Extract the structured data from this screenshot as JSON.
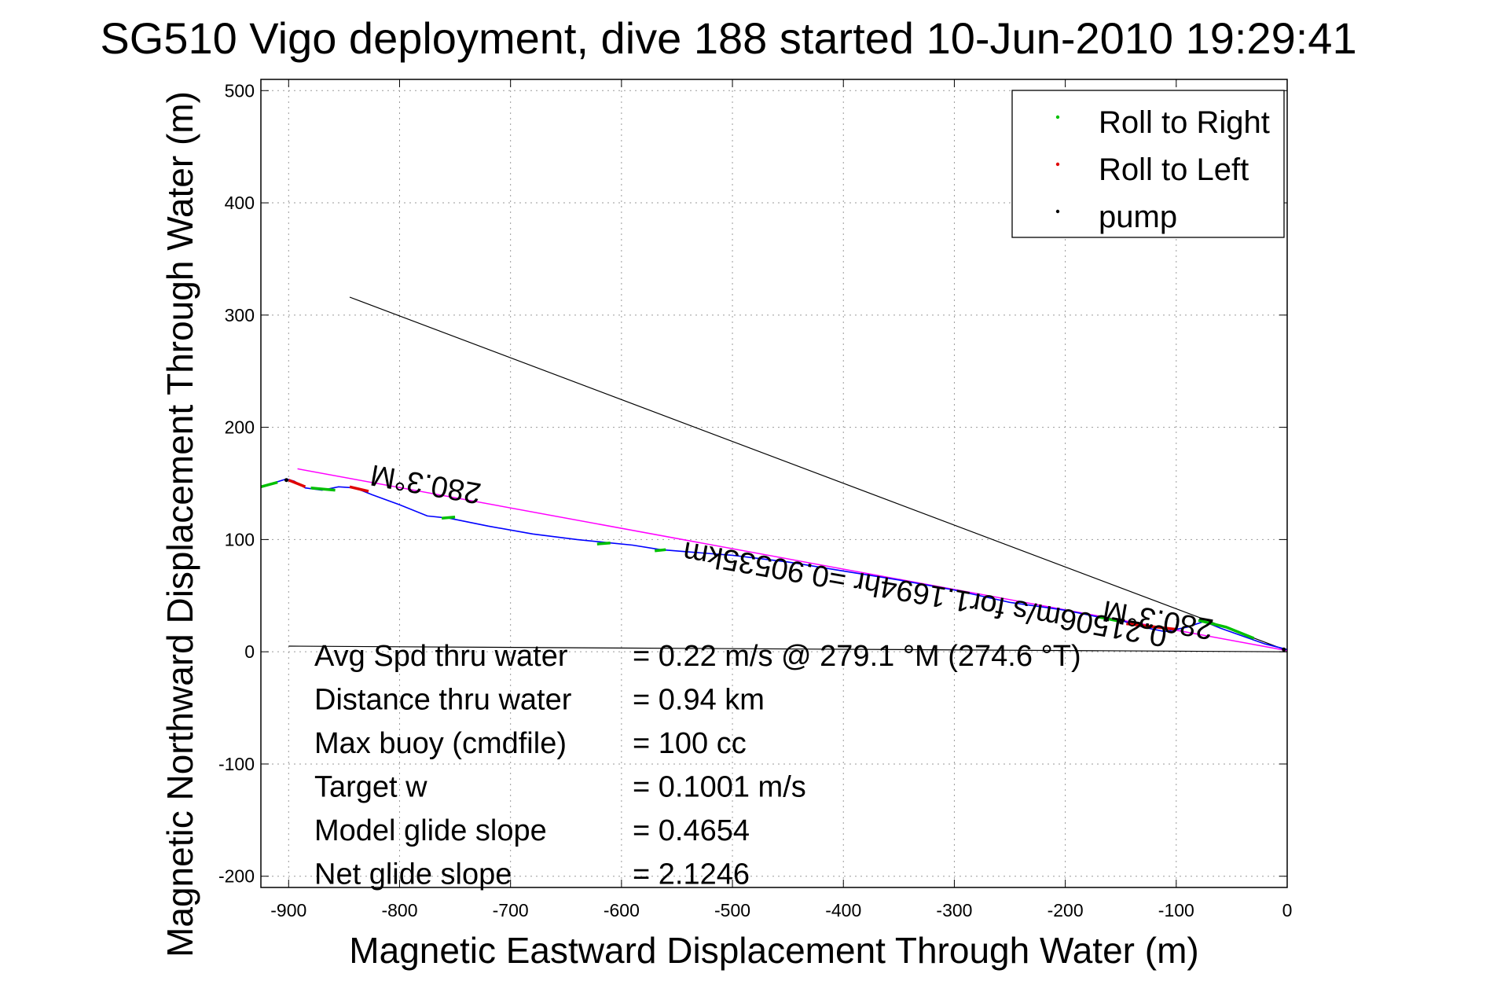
{
  "chart_data": {
    "type": "scatter",
    "title": "SG510 Vigo deployment, dive 188 started 10-Jun-2010 19:29:41",
    "xlabel": "Magnetic Eastward Displacement Through Water (m)",
    "ylabel": "Magnetic Northward Displacement Through Water (m)",
    "xlim": [
      -925,
      0
    ],
    "ylim": [
      -210,
      510
    ],
    "xticks": [
      -900,
      -800,
      -700,
      -600,
      -500,
      -400,
      -300,
      -200,
      -100,
      0
    ],
    "yticks": [
      500,
      400,
      300,
      200,
      100,
      0,
      -100,
      -200
    ],
    "grid": true,
    "legend_position": "top-right",
    "legend": [
      {
        "label": "Roll to Right",
        "color": "#00c000"
      },
      {
        "label": "Roll to Left",
        "color": "#e00000"
      },
      {
        "label": "pump",
        "color": "#000000"
      }
    ],
    "track": {
      "color": "#0000ff",
      "x": [
        0,
        -20,
        -40,
        -60,
        -75,
        -90,
        -110,
        -130,
        -150,
        -170,
        -200,
        -250,
        -300,
        -350,
        -400,
        -450,
        -500,
        -540,
        -565,
        -590,
        -610,
        -640,
        -680,
        -720,
        -755,
        -775,
        -800,
        -825,
        -840,
        -855,
        -870,
        -885,
        -895,
        -902,
        -915,
        -925
      ],
      "y": [
        2,
        7,
        14,
        21,
        27,
        22,
        18,
        22,
        28,
        31,
        37,
        44,
        55,
        64,
        72,
        80,
        86,
        89,
        91,
        95,
        97,
        100,
        105,
        112,
        119,
        121,
        131,
        140,
        146,
        147,
        144,
        146,
        152,
        154,
        150,
        147
      ]
    },
    "roll_right_segments": [
      {
        "x": [
          -80,
          -55,
          -30
        ],
        "y": [
          28,
          22,
          12
        ]
      },
      {
        "x": [
          -170,
          -150
        ],
        "y": [
          31,
          27
        ]
      },
      {
        "x": [
          -880,
          -858
        ],
        "y": [
          146,
          144
        ]
      },
      {
        "x": [
          -925,
          -910
        ],
        "y": [
          147,
          151
        ]
      },
      {
        "x": [
          -762,
          -750
        ],
        "y": [
          119,
          120
        ]
      },
      {
        "x": [
          -622,
          -610
        ],
        "y": [
          96,
          97
        ]
      },
      {
        "x": [
          -570,
          -560
        ],
        "y": [
          90,
          91
        ]
      }
    ],
    "roll_left_segments": [
      {
        "x": [
          -145,
          -100
        ],
        "y": [
          25,
          20
        ]
      },
      {
        "x": [
          -845,
          -828
        ],
        "y": [
          147,
          143
        ]
      },
      {
        "x": [
          -900,
          -885
        ],
        "y": [
          153,
          147
        ]
      }
    ],
    "pump_points": {
      "x": [
        -902,
        -3
      ],
      "y": [
        153,
        2
      ]
    },
    "magenta_line": {
      "color": "#ff00ff",
      "x": [
        -892,
        0
      ],
      "y": [
        163,
        1
      ]
    },
    "black_line": {
      "color": "#000000",
      "x": [
        -845,
        0
      ],
      "y": [
        316,
        1
      ]
    },
    "horizontal_line": {
      "color": "#000000",
      "x": [
        -900,
        0
      ],
      "y": [
        5,
        0
      ]
    },
    "annotations": [
      {
        "text": "280.3°M",
        "x": -775,
        "y": 158,
        "rotate": 190
      },
      {
        "text": "280.3°M",
        "x": -115,
        "y": 37,
        "rotate": 190
      },
      {
        "text": "0.21506m/s for1.1694hr =0.90535km",
        "x": -325,
        "y": 60,
        "rotate": 190
      }
    ],
    "summary": [
      {
        "label": "Avg Spd thru water",
        "value": "=  0.22 m/s @ 279.1 °M (274.6 °T)"
      },
      {
        "label": "Distance thru water",
        "value": "=  0.94 km"
      },
      {
        "label": "Max buoy (cmdfile)",
        "value": "= 100 cc"
      },
      {
        "label": "Target w",
        "value": "= 0.1001 m/s"
      },
      {
        "label": "Model glide slope",
        "value": "= 0.4654"
      },
      {
        "label": "Net glide slope",
        "value": "= 2.1246"
      }
    ]
  }
}
